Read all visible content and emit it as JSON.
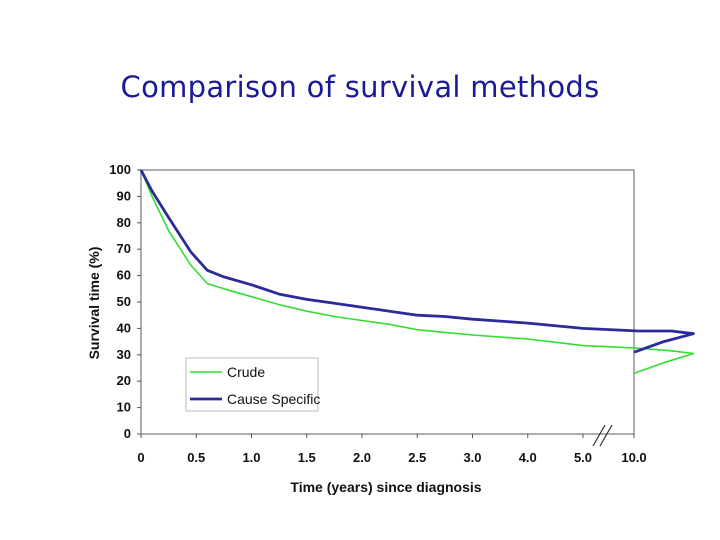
{
  "slide": {
    "title": "Comparison of survival methods"
  },
  "chart_data": {
    "type": "line",
    "title": "Comparison of survival methods",
    "xlabel": "Time (years) since diagnosis",
    "ylabel": "Survival time (%)",
    "x_tick_labels": [
      "0",
      "0.5",
      "1.0",
      "1.5",
      "2.0",
      "2.5",
      "3.0",
      "4.0",
      "5.0",
      "10.0"
    ],
    "y_ticks": [
      0,
      10,
      20,
      30,
      40,
      50,
      60,
      70,
      80,
      90,
      100
    ],
    "ylim": [
      0,
      100
    ],
    "axis_break": "between 5.0 and 10.0",
    "grid": false,
    "legend_position": "bottom-left",
    "series": [
      {
        "name": "Crude",
        "color": "#33dd33",
        "points": [
          [
            0,
            100
          ],
          [
            0.1,
            90
          ],
          [
            0.25,
            77
          ],
          [
            0.45,
            64
          ],
          [
            0.6,
            57
          ],
          [
            0.75,
            55
          ],
          [
            1.0,
            52
          ],
          [
            1.25,
            49
          ],
          [
            1.5,
            46.5
          ],
          [
            1.75,
            44.5
          ],
          [
            2.0,
            43
          ],
          [
            2.25,
            41.5
          ],
          [
            2.5,
            39.5
          ],
          [
            2.75,
            38.5
          ],
          [
            3.0,
            37.5
          ],
          [
            3.5,
            36
          ],
          [
            4.0,
            33.5
          ],
          [
            4.5,
            32.5
          ],
          [
            4.8,
            31.5
          ],
          [
            5.0,
            30.5
          ],
          [
            6.25,
            27
          ],
          [
            7.5,
            23
          ]
        ]
      },
      {
        "name": "Cause Specific",
        "color": "#2b2b99",
        "points": [
          [
            0,
            100
          ],
          [
            0.1,
            92
          ],
          [
            0.25,
            82
          ],
          [
            0.45,
            69
          ],
          [
            0.6,
            62
          ],
          [
            0.75,
            59.5
          ],
          [
            1.0,
            56.5
          ],
          [
            1.25,
            53
          ],
          [
            1.5,
            51
          ],
          [
            1.75,
            49.5
          ],
          [
            2.0,
            48
          ],
          [
            2.25,
            46.5
          ],
          [
            2.5,
            45
          ],
          [
            2.75,
            44.5
          ],
          [
            3.0,
            43.5
          ],
          [
            3.5,
            42
          ],
          [
            4.0,
            40
          ],
          [
            4.5,
            39
          ],
          [
            4.8,
            39
          ],
          [
            5.0,
            38
          ],
          [
            6.25,
            35
          ],
          [
            7.5,
            31
          ]
        ]
      }
    ]
  }
}
